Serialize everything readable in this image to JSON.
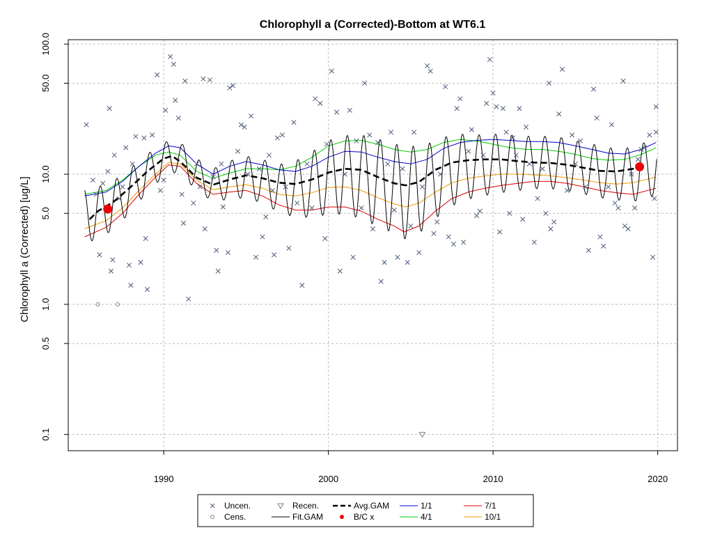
{
  "chart_data": {
    "type": "scatter",
    "title": "Chlorophyll a (Corrected)-Bottom at WT6.1",
    "xlabel": "",
    "ylabel": "Chlorophyll a (Corrected) [ug/L]",
    "x_range": [
      1984.2,
      2021.2
    ],
    "y_range": [
      0.075,
      108
    ],
    "y_scale": "log",
    "grid": true,
    "legend_placement": "bottom-center",
    "x_ticks": [
      1990,
      2000,
      2010,
      2020
    ],
    "x_tick_labels": [
      "1990",
      "2000",
      "2010",
      "2020"
    ],
    "y_ticks": [
      0.1,
      0.5,
      1.0,
      5.0,
      10.0,
      50.0,
      100.0
    ],
    "y_tick_labels": [
      "0.1",
      "0.5",
      "1.0",
      "5.0",
      "10.0",
      "50.0",
      "100.0"
    ],
    "colors": {
      "uncen": "#4a5a78",
      "cens": "#808080",
      "fit_gam": "#000000",
      "avg_gam": "#000000",
      "bc": "#ee0000",
      "jan1": "#0000cc",
      "apr1": "#00cc00",
      "jul1": "#dd0000",
      "oct1": "#ee9900",
      "grid": "#bbbbbb"
    },
    "legend": [
      {
        "label": "Uncen.",
        "key": "uncen",
        "symbol": "x"
      },
      {
        "label": "Cens.",
        "key": "cens",
        "symbol": "circle"
      },
      {
        "label": "Recen.",
        "key": "cens",
        "symbol": "triangle"
      },
      {
        "label": "Fit.GAM",
        "key": "fit_gam",
        "symbol": "line"
      },
      {
        "label": "Avg.GAM",
        "key": "avg_gam",
        "symbol": "dash"
      },
      {
        "label": "B/C x",
        "key": "bc",
        "symbol": "dot"
      },
      {
        "label": "1/1",
        "key": "jan1",
        "symbol": "line"
      },
      {
        "label": "4/1",
        "key": "apr1",
        "symbol": "line"
      },
      {
        "label": "7/1",
        "key": "jul1",
        "symbol": "line"
      },
      {
        "label": "10/1",
        "key": "oct1",
        "symbol": "line"
      }
    ],
    "uncensored": [
      [
        1985.3,
        24
      ],
      [
        1985.7,
        9
      ],
      [
        1985.9,
        7
      ],
      [
        1986.1,
        2.4
      ],
      [
        1986.3,
        8.5
      ],
      [
        1986.6,
        10.5
      ],
      [
        1986.7,
        32
      ],
      [
        1986.8,
        1.8
      ],
      [
        1986.9,
        2.2
      ],
      [
        1987.0,
        14
      ],
      [
        1987.3,
        6.5
      ],
      [
        1987.5,
        8
      ],
      [
        1987.7,
        16
      ],
      [
        1987.9,
        2
      ],
      [
        1988.0,
        1.4
      ],
      [
        1988.1,
        12
      ],
      [
        1988.3,
        19.5
      ],
      [
        1988.6,
        2.1
      ],
      [
        1988.8,
        19
      ],
      [
        1988.9,
        3.2
      ],
      [
        1989.0,
        1.3
      ],
      [
        1989.3,
        20
      ],
      [
        1989.6,
        58
      ],
      [
        1989.8,
        7.5
      ],
      [
        1990.0,
        9
      ],
      [
        1990.1,
        31
      ],
      [
        1990.4,
        80
      ],
      [
        1990.6,
        70
      ],
      [
        1990.7,
        37
      ],
      [
        1990.9,
        27
      ],
      [
        1991.1,
        7
      ],
      [
        1991.2,
        4.2
      ],
      [
        1991.3,
        52
      ],
      [
        1991.5,
        1.1
      ],
      [
        1991.8,
        6
      ],
      [
        1992.0,
        12
      ],
      [
        1992.2,
        8
      ],
      [
        1992.4,
        54
      ],
      [
        1992.5,
        3.8
      ],
      [
        1992.8,
        53
      ],
      [
        1993.0,
        9.5
      ],
      [
        1993.2,
        2.6
      ],
      [
        1993.3,
        1.8
      ],
      [
        1993.5,
        12
      ],
      [
        1993.6,
        5.6
      ],
      [
        1993.9,
        2.5
      ],
      [
        1994.0,
        46
      ],
      [
        1994.2,
        48
      ],
      [
        1994.5,
        15
      ],
      [
        1994.7,
        24
      ],
      [
        1994.9,
        23
      ],
      [
        1995.1,
        10
      ],
      [
        1995.3,
        28
      ],
      [
        1995.6,
        2.3
      ],
      [
        1995.8,
        11
      ],
      [
        1996.0,
        3.3
      ],
      [
        1996.2,
        4.7
      ],
      [
        1996.4,
        14
      ],
      [
        1996.6,
        7.5
      ],
      [
        1996.7,
        2.4
      ],
      [
        1996.9,
        19
      ],
      [
        1997.2,
        20
      ],
      [
        1997.4,
        8
      ],
      [
        1997.6,
        2.7
      ],
      [
        1997.9,
        25
      ],
      [
        1998.1,
        6
      ],
      [
        1998.4,
        1.4
      ],
      [
        1998.7,
        12
      ],
      [
        1999.0,
        5.5
      ],
      [
        1999.2,
        38
      ],
      [
        1999.5,
        35
      ],
      [
        1999.8,
        3.2
      ],
      [
        1999.9,
        17
      ],
      [
        2000.2,
        62
      ],
      [
        2000.5,
        30
      ],
      [
        2000.7,
        1.8
      ],
      [
        2001.0,
        10
      ],
      [
        2001.3,
        31
      ],
      [
        2001.5,
        2.3
      ],
      [
        2001.7,
        18
      ],
      [
        2002.0,
        5.5
      ],
      [
        2002.2,
        50
      ],
      [
        2002.5,
        20
      ],
      [
        2002.7,
        3.8
      ],
      [
        2003.0,
        17.5
      ],
      [
        2003.2,
        1.5
      ],
      [
        2003.4,
        2.1
      ],
      [
        2003.6,
        12
      ],
      [
        2003.8,
        21
      ],
      [
        2004.0,
        5.3
      ],
      [
        2004.2,
        2.3
      ],
      [
        2004.5,
        11
      ],
      [
        2004.8,
        2.1
      ],
      [
        2005.0,
        4
      ],
      [
        2005.2,
        21
      ],
      [
        2005.5,
        2.5
      ],
      [
        2005.7,
        8
      ],
      [
        2006.0,
        68
      ],
      [
        2006.2,
        62
      ],
      [
        2006.4,
        3.5
      ],
      [
        2006.6,
        4.3
      ],
      [
        2006.8,
        10
      ],
      [
        2007.1,
        47
      ],
      [
        2007.3,
        3.3
      ],
      [
        2007.6,
        2.9
      ],
      [
        2007.8,
        32
      ],
      [
        2008.0,
        38
      ],
      [
        2008.2,
        3.0
      ],
      [
        2008.5,
        15
      ],
      [
        2008.7,
        22
      ],
      [
        2009.0,
        4.8
      ],
      [
        2009.2,
        5.2
      ],
      [
        2009.4,
        14
      ],
      [
        2009.6,
        35
      ],
      [
        2009.8,
        76
      ],
      [
        2010.0,
        42
      ],
      [
        2010.2,
        33
      ],
      [
        2010.4,
        3.6
      ],
      [
        2010.6,
        32
      ],
      [
        2010.8,
        21
      ],
      [
        2011.0,
        5
      ],
      [
        2011.2,
        19
      ],
      [
        2011.4,
        14
      ],
      [
        2011.6,
        32
      ],
      [
        2011.8,
        4.5
      ],
      [
        2012.0,
        23
      ],
      [
        2012.2,
        12
      ],
      [
        2012.5,
        3.0
      ],
      [
        2012.7,
        6.5
      ],
      [
        2013.0,
        11
      ],
      [
        2013.2,
        5
      ],
      [
        2013.4,
        50
      ],
      [
        2013.5,
        3.8
      ],
      [
        2013.7,
        4.3
      ],
      [
        2014.0,
        29
      ],
      [
        2014.2,
        64
      ],
      [
        2014.5,
        7.5
      ],
      [
        2014.8,
        20
      ],
      [
        2015.0,
        12
      ],
      [
        2015.3,
        18
      ],
      [
        2015.6,
        8
      ],
      [
        2015.8,
        2.6
      ],
      [
        2016.1,
        45
      ],
      [
        2016.3,
        27
      ],
      [
        2016.5,
        3.3
      ],
      [
        2016.7,
        2.8
      ],
      [
        2017.0,
        8
      ],
      [
        2017.2,
        24
      ],
      [
        2017.4,
        6
      ],
      [
        2017.6,
        5.5
      ],
      [
        2017.9,
        52
      ],
      [
        2018.0,
        4
      ],
      [
        2018.2,
        3.8
      ],
      [
        2018.4,
        10
      ],
      [
        2018.6,
        5.5
      ],
      [
        2018.8,
        13
      ],
      [
        2019.0,
        15.5
      ],
      [
        2019.2,
        16
      ],
      [
        2019.5,
        20
      ],
      [
        2019.7,
        2.3
      ],
      [
        2019.8,
        6.5
      ],
      [
        2019.9,
        33
      ],
      [
        2019.9,
        21
      ]
    ],
    "censored": [
      [
        1986.0,
        1.0
      ],
      [
        1987.2,
        1.0
      ]
    ],
    "recensored": [
      [
        2005.7,
        0.1
      ]
    ],
    "bc_points": [
      [
        1986.6,
        5.4
      ],
      [
        2018.9,
        11.4
      ]
    ],
    "avg_gam": [
      [
        1985.5,
        4.5
      ],
      [
        1986.0,
        5.2
      ],
      [
        1987.0,
        6.2
      ],
      [
        1988.0,
        8.0
      ],
      [
        1989.0,
        10.5
      ],
      [
        1990.0,
        13.2
      ],
      [
        1990.5,
        13.8
      ],
      [
        1991.0,
        12.5
      ],
      [
        1992.0,
        9.4
      ],
      [
        1993.0,
        8.3
      ],
      [
        1994.0,
        9.1
      ],
      [
        1995.0,
        9.8
      ],
      [
        1996.0,
        9.3
      ],
      [
        1997.0,
        8.6
      ],
      [
        1998.0,
        8.4
      ],
      [
        1999.0,
        9.1
      ],
      [
        2000.0,
        10.3
      ],
      [
        2001.0,
        11.0
      ],
      [
        2002.0,
        10.8
      ],
      [
        2003.0,
        9.5
      ],
      [
        2004.0,
        8.5
      ],
      [
        2004.7,
        8.2
      ],
      [
        2005.5,
        8.7
      ],
      [
        2006.5,
        10.8
      ],
      [
        2007.5,
        12.3
      ],
      [
        2008.5,
        12.8
      ],
      [
        2009.5,
        13.0
      ],
      [
        2010.5,
        13.0
      ],
      [
        2011.5,
        12.6
      ],
      [
        2012.5,
        12.3
      ],
      [
        2013.5,
        12.2
      ],
      [
        2014.5,
        11.8
      ],
      [
        2015.5,
        11.2
      ],
      [
        2016.5,
        10.6
      ],
      [
        2017.5,
        10.5
      ],
      [
        2018.5,
        11.0
      ],
      [
        2019.0,
        11.2
      ]
    ],
    "line_1_1": [
      [
        1985.2,
        6.8
      ],
      [
        1986.5,
        7.3
      ],
      [
        1987.5,
        8.8
      ],
      [
        1988.5,
        11.5
      ],
      [
        1989.5,
        14.5
      ],
      [
        1990.3,
        16.5
      ],
      [
        1991.0,
        16
      ],
      [
        1992.0,
        12
      ],
      [
        1993.0,
        10
      ],
      [
        1994.0,
        11.5
      ],
      [
        1995.0,
        12.5
      ],
      [
        1996.0,
        11.8
      ],
      [
        1997.0,
        10.8
      ],
      [
        1998.0,
        10.5
      ],
      [
        1999.0,
        11.5
      ],
      [
        2000.0,
        13.5
      ],
      [
        2001.0,
        15
      ],
      [
        2002.0,
        14.8
      ],
      [
        2003.0,
        13.5
      ],
      [
        2004.0,
        12.5
      ],
      [
        2005.0,
        12
      ],
      [
        2006.0,
        13
      ],
      [
        2007.0,
        15.8
      ],
      [
        2008.0,
        17.5
      ],
      [
        2009.0,
        18.2
      ],
      [
        2010.0,
        18.5
      ],
      [
        2011.0,
        18.2
      ],
      [
        2012.0,
        17.8
      ],
      [
        2013.0,
        17.8
      ],
      [
        2014.0,
        17.5
      ],
      [
        2015.0,
        16.5
      ],
      [
        2016.0,
        15.5
      ],
      [
        2017.0,
        14.5
      ],
      [
        2018.0,
        14.3
      ],
      [
        2019.0,
        15.5
      ],
      [
        2019.9,
        17.5
      ]
    ],
    "line_4_1": [
      [
        1985.2,
        7.0
      ],
      [
        1986.5,
        7.5
      ],
      [
        1987.5,
        9
      ],
      [
        1988.5,
        11.5
      ],
      [
        1989.5,
        14
      ],
      [
        1990.3,
        14.8
      ],
      [
        1991.0,
        14
      ],
      [
        1992.0,
        10.5
      ],
      [
        1993.0,
        9.3
      ],
      [
        1994.0,
        10.2
      ],
      [
        1995.0,
        11
      ],
      [
        1996.0,
        11
      ],
      [
        1997.0,
        10.8
      ],
      [
        1998.0,
        11.5
      ],
      [
        1999.0,
        13.5
      ],
      [
        2000.0,
        16.5
      ],
      [
        2001.0,
        18
      ],
      [
        2002.0,
        18.2
      ],
      [
        2003.0,
        17
      ],
      [
        2004.0,
        15.5
      ],
      [
        2005.0,
        14.8
      ],
      [
        2006.0,
        15.5
      ],
      [
        2007.0,
        17.5
      ],
      [
        2008.0,
        18.5
      ],
      [
        2009.0,
        18
      ],
      [
        2010.0,
        17
      ],
      [
        2011.0,
        16
      ],
      [
        2012.0,
        15.5
      ],
      [
        2013.0,
        15.5
      ],
      [
        2014.0,
        15
      ],
      [
        2015.0,
        14.2
      ],
      [
        2016.0,
        13.2
      ],
      [
        2017.0,
        12.8
      ],
      [
        2018.0,
        13
      ],
      [
        2019.0,
        14.2
      ],
      [
        2019.9,
        16
      ]
    ],
    "line_7_1": [
      [
        1985.2,
        3.3
      ],
      [
        1986.5,
        3.9
      ],
      [
        1987.5,
        5
      ],
      [
        1988.5,
        7
      ],
      [
        1989.5,
        9.5
      ],
      [
        1990.3,
        11.8
      ],
      [
        1991.0,
        11.5
      ],
      [
        1992.0,
        8.5
      ],
      [
        1993.0,
        7
      ],
      [
        1994.0,
        7.3
      ],
      [
        1995.0,
        7.5
      ],
      [
        1996.0,
        6.8
      ],
      [
        1997.0,
        5.8
      ],
      [
        1998.0,
        5.3
      ],
      [
        1999.0,
        5.3
      ],
      [
        2000.0,
        5.6
      ],
      [
        2001.0,
        5.6
      ],
      [
        2002.0,
        5.2
      ],
      [
        2003.0,
        4.5
      ],
      [
        2004.0,
        4.0
      ],
      [
        2004.6,
        3.6
      ],
      [
        2005.5,
        4.0
      ],
      [
        2006.5,
        5.2
      ],
      [
        2007.5,
        6.5
      ],
      [
        2008.5,
        7.3
      ],
      [
        2009.5,
        7.8
      ],
      [
        2010.5,
        8.2
      ],
      [
        2011.5,
        8.5
      ],
      [
        2012.5,
        8.8
      ],
      [
        2013.5,
        8.8
      ],
      [
        2014.5,
        8.5
      ],
      [
        2015.5,
        8.0
      ],
      [
        2016.5,
        7.5
      ],
      [
        2017.5,
        7.2
      ],
      [
        2018.5,
        7.0
      ],
      [
        2019.9,
        7.8
      ]
    ],
    "line_10_1": [
      [
        1985.2,
        3.8
      ],
      [
        1986.5,
        4.4
      ],
      [
        1987.5,
        5.5
      ],
      [
        1988.5,
        7.5
      ],
      [
        1989.5,
        10
      ],
      [
        1990.3,
        12.3
      ],
      [
        1991.0,
        12
      ],
      [
        1992.0,
        9
      ],
      [
        1993.0,
        7.6
      ],
      [
        1994.0,
        8
      ],
      [
        1995.0,
        8.3
      ],
      [
        1996.0,
        7.8
      ],
      [
        1997.0,
        7
      ],
      [
        1998.0,
        6.8
      ],
      [
        1999.0,
        7.2
      ],
      [
        2000.0,
        7.9
      ],
      [
        2001.0,
        8
      ],
      [
        2002.0,
        7.5
      ],
      [
        2003.0,
        6.6
      ],
      [
        2004.0,
        5.9
      ],
      [
        2004.7,
        5.6
      ],
      [
        2005.5,
        6.0
      ],
      [
        2006.5,
        7.3
      ],
      [
        2007.5,
        8.6
      ],
      [
        2008.5,
        9.3
      ],
      [
        2009.5,
        9.7
      ],
      [
        2010.5,
        10
      ],
      [
        2011.5,
        10
      ],
      [
        2012.5,
        9.9
      ],
      [
        2013.5,
        9.7
      ],
      [
        2014.5,
        9.4
      ],
      [
        2015.5,
        9.0
      ],
      [
        2016.5,
        8.6
      ],
      [
        2017.5,
        8.4
      ],
      [
        2018.5,
        8.6
      ],
      [
        2019.9,
        9.5
      ]
    ]
  }
}
